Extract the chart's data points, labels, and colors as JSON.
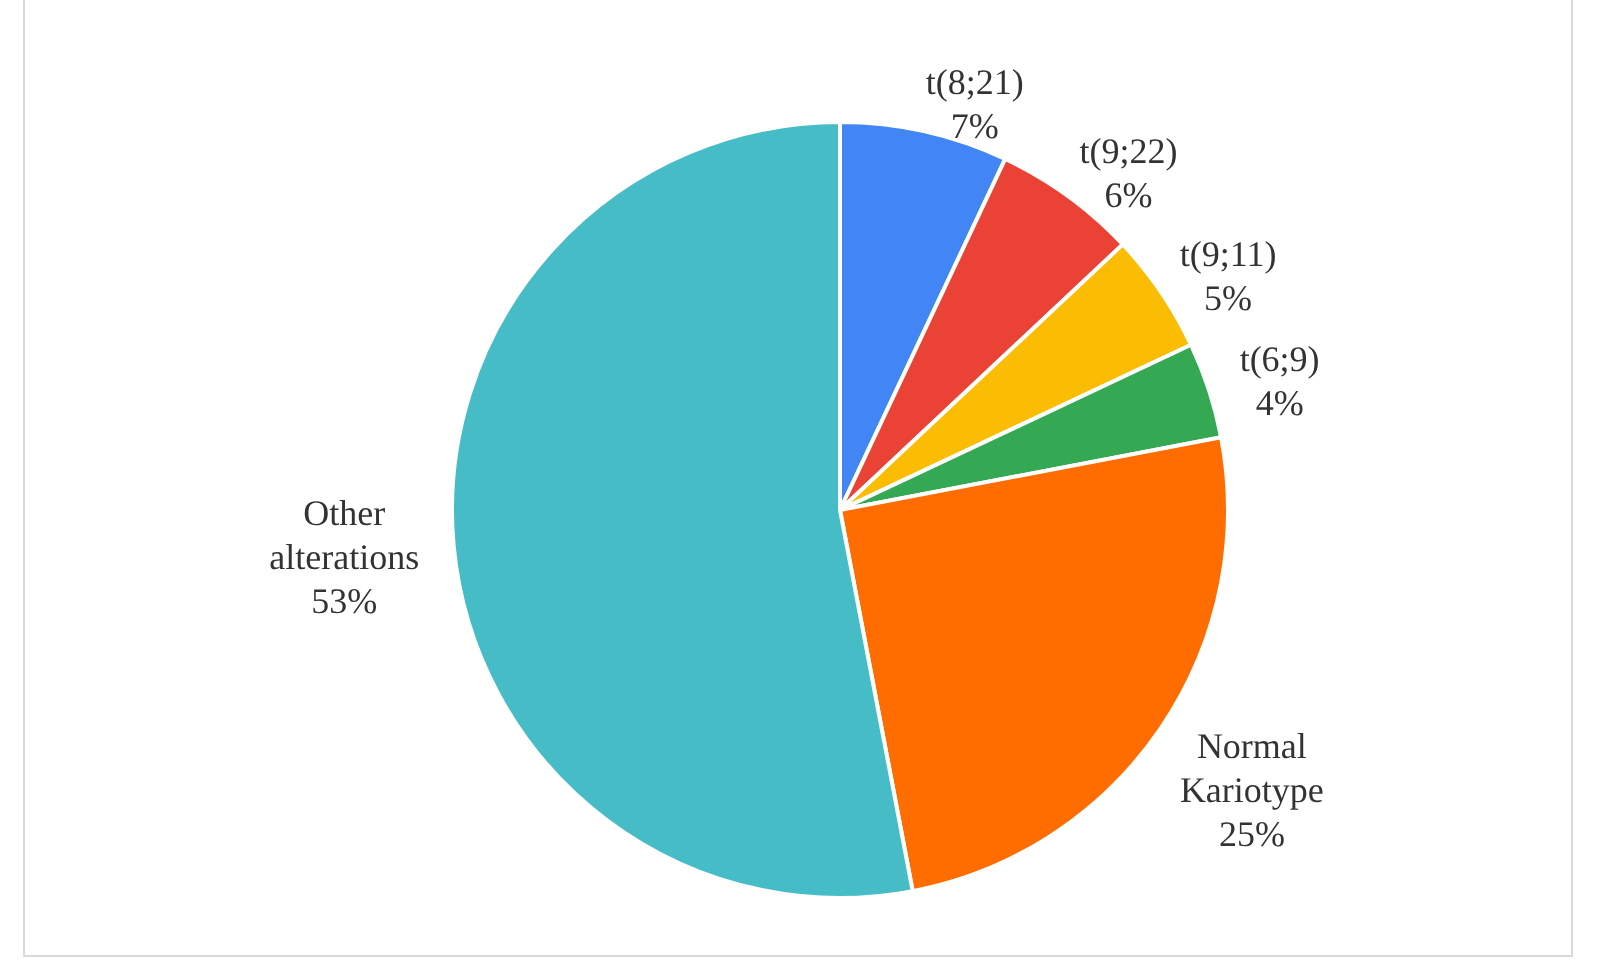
{
  "chart_data": {
    "type": "pie",
    "categories": [
      "t(8;21)",
      "t(9;22)",
      "t(9;11)",
      "t(6;9)",
      "Normal Kariotype",
      "Other alterations"
    ],
    "values": [
      7,
      6,
      5,
      4,
      25,
      53
    ],
    "colors": [
      "#4285f4",
      "#ea4335",
      "#fbbc04",
      "#34a853",
      "#ff6d01",
      "#46bdc6"
    ],
    "value_labels": [
      "7%",
      "6%",
      "5%",
      "4%",
      "25%",
      "53%"
    ]
  }
}
